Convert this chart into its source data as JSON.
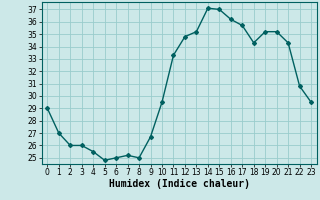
{
  "x": [
    0,
    1,
    2,
    3,
    4,
    5,
    6,
    7,
    8,
    9,
    10,
    11,
    12,
    13,
    14,
    15,
    16,
    17,
    18,
    19,
    20,
    21,
    22,
    23
  ],
  "y": [
    29,
    27,
    26,
    26,
    25.5,
    24.8,
    25,
    25.2,
    25,
    26.7,
    29.5,
    33.3,
    34.8,
    35.2,
    37.1,
    37,
    36.2,
    35.7,
    34.3,
    35.2,
    35.2,
    34.3,
    30.8,
    29.5
  ],
  "line_color": "#006060",
  "marker": "D",
  "marker_size": 2,
  "bg_color": "#cce8e8",
  "grid_color": "#99cccc",
  "xlabel": "Humidex (Indice chaleur)",
  "ylabel_ticks": [
    25,
    26,
    27,
    28,
    29,
    30,
    31,
    32,
    33,
    34,
    35,
    36,
    37
  ],
  "ylim": [
    24.5,
    37.6
  ],
  "xlim": [
    -0.5,
    23.5
  ],
  "xticks": [
    0,
    1,
    2,
    3,
    4,
    5,
    6,
    7,
    8,
    9,
    10,
    11,
    12,
    13,
    14,
    15,
    16,
    17,
    18,
    19,
    20,
    21,
    22,
    23
  ],
  "tick_fontsize": 5.5,
  "xlabel_fontsize": 7,
  "linewidth": 1.0
}
